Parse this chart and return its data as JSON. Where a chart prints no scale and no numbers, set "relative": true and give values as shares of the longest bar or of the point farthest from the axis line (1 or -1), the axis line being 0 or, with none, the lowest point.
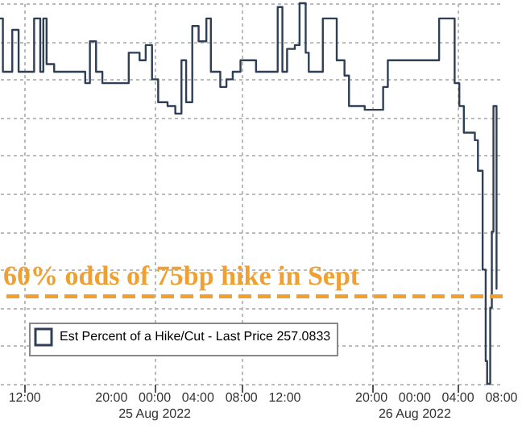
{
  "chart_data": {
    "type": "step",
    "relative": true,
    "x": [
      "2022-08-24T09:43",
      "2022-08-24T09:59",
      "2022-08-24T10:51",
      "2022-08-24T11:26",
      "2022-08-24T12:52",
      "2022-08-24T13:26",
      "2022-08-24T13:43",
      "2022-08-24T14:01",
      "2022-08-24T14:43",
      "2022-08-24T17:10",
      "2022-08-24T17:35",
      "2022-08-24T18:01",
      "2022-08-24T18:35",
      "2022-08-24T19:10",
      "2022-08-24T21:28",
      "2022-08-24T21:36",
      "2022-08-24T22:36",
      "2022-08-24T23:10",
      "2022-08-24T23:45",
      "2022-08-25T00:19",
      "2022-08-25T01:11",
      "2022-08-25T01:54",
      "2022-08-25T02:28",
      "2022-08-25T02:54",
      "2022-08-25T03:28",
      "2022-08-25T04:03",
      "2022-08-25T04:46",
      "2022-08-25T05:11",
      "2022-08-25T06:03",
      "2022-08-25T06:37",
      "2022-08-25T07:12",
      "2022-08-25T07:55",
      "2022-08-25T08:38",
      "2022-08-25T09:21",
      "2022-08-25T11:04",
      "2022-08-25T11:21",
      "2022-08-25T11:47",
      "2022-08-25T12:13",
      "2022-08-25T12:56",
      "2022-08-25T13:22",
      "2022-08-25T13:56",
      "2022-08-25T14:13",
      "2022-08-25T15:22",
      "2022-08-25T15:31",
      "2022-08-25T16:31",
      "2022-08-25T16:48",
      "2022-08-25T17:31",
      "2022-08-25T17:56",
      "2022-08-25T19:23",
      "2022-08-25T20:49",
      "2022-08-25T21:05",
      "2022-08-25T21:31",
      "2022-08-26T00:23",
      "2022-08-26T02:07",
      "2022-08-26T02:15",
      "2022-08-26T03:16",
      "2022-08-26T03:41",
      "2022-08-26T04:07",
      "2022-08-26T04:32",
      "2022-08-26T05:33",
      "2022-08-26T05:50",
      "2022-08-26T06:16",
      "2022-08-26T06:33",
      "2022-08-26T06:41",
      "2022-08-26T06:58",
      "2022-08-26T07:07",
      "2022-08-26T07:16",
      "2022-08-26T07:33"
    ],
    "series": [
      {
        "name": "Est Percent of a Hike/Cut - Last Price 257.0833",
        "color": "#2f3f55",
        "values": [
          0.96,
          0.82,
          0.93,
          0.82,
          0.96,
          0.82,
          0.96,
          0.84,
          0.82,
          0.82,
          0.79,
          0.9,
          0.82,
          0.79,
          0.79,
          0.87,
          0.85,
          0.89,
          0.8,
          0.74,
          0.73,
          0.71,
          0.85,
          0.74,
          0.94,
          0.9,
          0.96,
          0.82,
          0.78,
          0.8,
          0.82,
          0.85,
          0.85,
          0.82,
          0.82,
          0.99,
          0.82,
          0.88,
          0.89,
          1,
          0.87,
          0.82,
          0.82,
          0.96,
          0.96,
          0.85,
          0.81,
          0.73,
          0.72,
          0.72,
          0.78,
          0.85,
          0.85,
          0.85,
          0.96,
          0.96,
          0.79,
          0.73,
          0.66,
          0.64,
          0.56,
          0.3,
          0.06,
          0,
          0.2,
          0.4,
          0.73,
          0.25
        ]
      }
    ],
    "xlim": [
      "2022-08-24T09:43",
      "2022-08-26T08:07"
    ],
    "xticks": [
      {
        "value": "2022-08-24T12:00",
        "label": "12:00"
      },
      {
        "value": "2022-08-24T20:00",
        "label": "20:00"
      },
      {
        "value": "2022-08-25T00:00",
        "label": "00:00\n25 Aug 2022"
      },
      {
        "value": "2022-08-25T04:00",
        "label": "04:00"
      },
      {
        "value": "2022-08-25T08:00",
        "label": "08:00"
      },
      {
        "value": "2022-08-25T12:00",
        "label": "12:00"
      },
      {
        "value": "2022-08-25T20:00",
        "label": "20:00"
      },
      {
        "value": "2022-08-26T00:00",
        "label": "00:00\n26 Aug 2022"
      },
      {
        "value": "2022-08-26T04:00",
        "label": "04:00"
      },
      {
        "value": "2022-08-26T08:00",
        "label": "08:00"
      }
    ],
    "ref_lines": [
      {
        "axis": "y",
        "value": 0.23,
        "label": "60% odds of 75bp hike in Sept",
        "color": "#f0a030",
        "line_style": "dashed"
      }
    ],
    "grid": true,
    "legend": "bottom left"
  }
}
